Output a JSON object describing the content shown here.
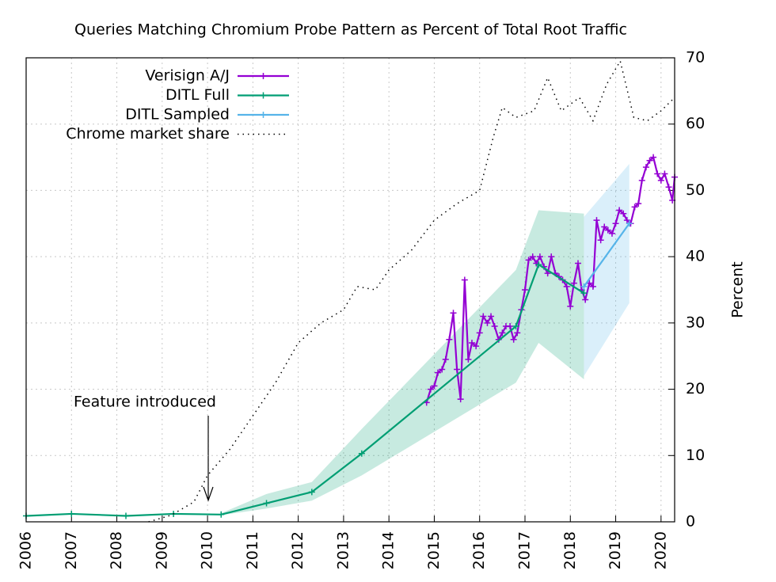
{
  "chart_data": {
    "type": "line",
    "title": "Queries Matching Chromium Probe Pattern as Percent of Total Root Traffic",
    "ylabel": "Percent",
    "annotation": "Feature introduced",
    "xlim": [
      2006,
      2020.3
    ],
    "xticks": [
      2006,
      2007,
      2008,
      2009,
      2010,
      2011,
      2012,
      2013,
      2014,
      2015,
      2016,
      2017,
      2018,
      2019,
      2020
    ],
    "ylim": [
      0,
      70
    ],
    "yticks": [
      0,
      10,
      20,
      30,
      40,
      50,
      60,
      70
    ],
    "y_axis_side": "right",
    "grid": true,
    "legend": "top-left",
    "series": [
      {
        "name": "Verisign A/J",
        "color": "#9400d3",
        "marker": true,
        "dash": "solid",
        "x": [
          2014.83,
          2014.92,
          2015.0,
          2015.08,
          2015.17,
          2015.25,
          2015.33,
          2015.42,
          2015.5,
          2015.58,
          2015.67,
          2015.75,
          2015.83,
          2015.92,
          2016.0,
          2016.08,
          2016.17,
          2016.25,
          2016.33,
          2016.42,
          2016.5,
          2016.58,
          2016.67,
          2016.75,
          2016.83,
          2016.92,
          2017.0,
          2017.08,
          2017.17,
          2017.25,
          2017.33,
          2017.42,
          2017.5,
          2017.58,
          2017.67,
          2017.75,
          2017.83,
          2017.92,
          2018.0,
          2018.08,
          2018.17,
          2018.25,
          2018.33,
          2018.42,
          2018.5,
          2018.58,
          2018.67,
          2018.75,
          2018.83,
          2018.92,
          2019.0,
          2019.08,
          2019.17,
          2019.25,
          2019.33,
          2019.42,
          2019.5,
          2019.58,
          2019.67,
          2019.75,
          2019.83,
          2019.92,
          2020.0,
          2020.08,
          2020.17,
          2020.25,
          2020.3
        ],
        "values": [
          18,
          20,
          20.5,
          22.5,
          23,
          24.5,
          27.5,
          31.5,
          23,
          18.5,
          36.5,
          24.5,
          27,
          26.5,
          28.5,
          31,
          30,
          31,
          29.5,
          27.5,
          28.5,
          29.5,
          29.5,
          27.5,
          28.5,
          32,
          35,
          39.5,
          40,
          39,
          40,
          38.5,
          37.5,
          40,
          37.5,
          37,
          36.5,
          35.5,
          32.5,
          36,
          39,
          35,
          33.5,
          36,
          35.5,
          45.5,
          42.5,
          44.5,
          44,
          43.5,
          45,
          47,
          46.5,
          45.5,
          45,
          47.5,
          48,
          51.5,
          53.5,
          54.5,
          55,
          52.5,
          51.5,
          52.5,
          50.5,
          48.5,
          52
        ]
      },
      {
        "name": "DITL Full",
        "color": "#009e73",
        "marker": true,
        "dash": "solid",
        "x": [
          2006.0,
          2007.0,
          2008.2,
          2009.25,
          2010.3,
          2011.3,
          2012.3,
          2013.4,
          2016.8,
          2017.3,
          2018.3
        ],
        "values": [
          0.9,
          1.2,
          0.9,
          1.2,
          1.1,
          2.8,
          4.5,
          10.3,
          29.5,
          38.8,
          34.5
        ],
        "band_x": [
          2010.3,
          2011.3,
          2012.3,
          2013.4,
          2016.8,
          2017.3,
          2018.3
        ],
        "band_high": [
          1.3,
          4.2,
          6,
          14,
          38,
          47,
          46.5
        ],
        "band_low": [
          1,
          2,
          3.2,
          7,
          21,
          27,
          21.5
        ]
      },
      {
        "name": "DITL Sampled",
        "color": "#56b4e9",
        "marker": true,
        "dash": "solid",
        "x": [
          2018.3,
          2019.3
        ],
        "values": [
          35.5,
          45
        ],
        "band_x": [
          2018.3,
          2019.3
        ],
        "band_high": [
          46,
          54
        ],
        "band_low": [
          22,
          33
        ]
      },
      {
        "name": "Chrome market share",
        "color": "#000000",
        "marker": false,
        "dash": "dotted",
        "x": [
          2008.7,
          2009.2,
          2009.7,
          2010.0,
          2010.5,
          2011.0,
          2011.5,
          2012.0,
          2012.5,
          2013.0,
          2013.3,
          2013.7,
          2014.0,
          2014.5,
          2015.0,
          2015.5,
          2016.0,
          2016.3,
          2016.5,
          2016.8,
          2017.2,
          2017.5,
          2017.8,
          2018.2,
          2018.5,
          2018.8,
          2019.1,
          2019.4,
          2019.7,
          2020.0,
          2020.3
        ],
        "values": [
          0,
          1,
          3,
          7,
          11,
          16,
          21,
          27,
          30,
          32,
          35.5,
          35,
          38,
          41,
          45.5,
          48,
          50,
          58,
          62.5,
          61,
          62,
          67,
          62,
          64,
          60.5,
          66,
          69.5,
          61,
          60.5,
          62,
          64
        ]
      }
    ]
  }
}
